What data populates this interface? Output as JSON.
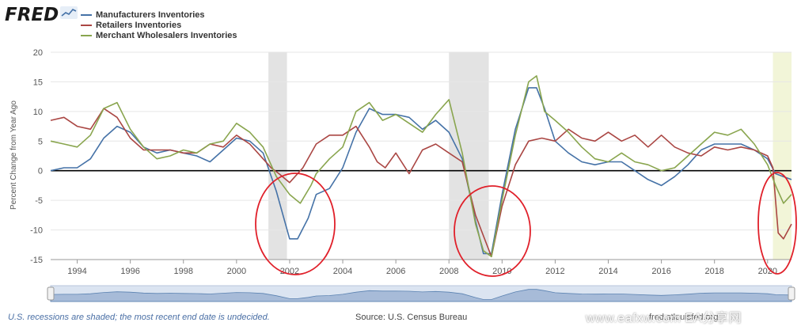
{
  "header": {
    "logo_text": "FRED",
    "legend": [
      {
        "label": "Manufacturers Inventories",
        "color": "#4572a7"
      },
      {
        "label": "Retailers Inventories",
        "color": "#aa4643"
      },
      {
        "label": "Merchant Wholesalers Inventories",
        "color": "#89a54e"
      }
    ]
  },
  "chart_data": {
    "type": "line",
    "title": "",
    "xlabel": "",
    "ylabel": "Percent Change from Year Ago",
    "xlim": [
      1993.0,
      2020.9
    ],
    "ylim": [
      -15,
      20
    ],
    "y_ticks": [
      20,
      15,
      10,
      5,
      0,
      -5,
      -10,
      -15
    ],
    "x_ticks": [
      "1994",
      "1996",
      "1998",
      "2000",
      "2002",
      "2004",
      "2006",
      "2008",
      "2010",
      "2012",
      "2014",
      "2016",
      "2018",
      "2020"
    ],
    "grid": true,
    "legend_position": "top-left",
    "recessions": [
      {
        "start": 2001.2,
        "end": 2001.9
      },
      {
        "start": 2008.0,
        "end": 2009.5
      },
      {
        "start": 2020.2,
        "end": 2020.9,
        "undecided": true
      }
    ],
    "series": [
      {
        "name": "Manufacturers Inventories",
        "color": "#4572a7",
        "x": [
          1993.0,
          1993.5,
          1994.0,
          1994.5,
          1995.0,
          1995.5,
          1996.0,
          1996.5,
          1997.0,
          1997.5,
          1998.0,
          1998.5,
          1999.0,
          1999.5,
          2000.0,
          2000.5,
          2001.0,
          2001.5,
          2002.0,
          2002.3,
          2002.7,
          2003.0,
          2003.5,
          2004.0,
          2004.5,
          2005.0,
          2005.5,
          2006.0,
          2006.5,
          2007.0,
          2007.5,
          2008.0,
          2008.5,
          2009.0,
          2009.3,
          2009.6,
          2010.0,
          2010.5,
          2011.0,
          2011.3,
          2011.6,
          2012.0,
          2012.5,
          2013.0,
          2013.5,
          2014.0,
          2014.5,
          2015.0,
          2015.5,
          2016.0,
          2016.5,
          2017.0,
          2017.5,
          2018.0,
          2018.5,
          2019.0,
          2019.5,
          2020.0,
          2020.3,
          2020.6,
          2020.9
        ],
        "y": [
          0.0,
          0.5,
          0.5,
          2.0,
          5.5,
          7.5,
          6.5,
          4.0,
          3.0,
          3.5,
          3.0,
          2.5,
          1.5,
          3.5,
          5.5,
          5.0,
          3.0,
          -3.5,
          -11.5,
          -11.5,
          -8.0,
          -4.0,
          -3.0,
          0.5,
          6.5,
          10.5,
          9.5,
          9.5,
          9.0,
          7.0,
          8.5,
          6.5,
          2.0,
          -8.5,
          -14.0,
          -14.0,
          -4.0,
          7.0,
          14.0,
          14.0,
          10.5,
          5.0,
          3.0,
          1.5,
          1.0,
          1.5,
          1.5,
          0.0,
          -1.5,
          -2.5,
          -1.0,
          1.0,
          3.5,
          4.5,
          4.5,
          4.5,
          3.5,
          2.0,
          -0.5,
          -1.0,
          -1.5
        ]
      },
      {
        "name": "Retailers Inventories",
        "color": "#aa4643",
        "x": [
          1993.0,
          1993.5,
          1994.0,
          1994.5,
          1995.0,
          1995.5,
          1996.0,
          1996.5,
          1997.0,
          1997.5,
          1998.0,
          1998.5,
          1999.0,
          1999.5,
          2000.0,
          2000.5,
          2001.0,
          2001.3,
          2001.6,
          2002.0,
          2002.5,
          2003.0,
          2003.5,
          2004.0,
          2004.5,
          2005.0,
          2005.3,
          2005.6,
          2006.0,
          2006.5,
          2007.0,
          2007.5,
          2008.0,
          2008.5,
          2009.0,
          2009.3,
          2009.6,
          2010.0,
          2010.5,
          2011.0,
          2011.5,
          2012.0,
          2012.5,
          2013.0,
          2013.5,
          2014.0,
          2014.5,
          2015.0,
          2015.5,
          2016.0,
          2016.5,
          2017.0,
          2017.5,
          2018.0,
          2018.5,
          2019.0,
          2019.5,
          2020.0,
          2020.2,
          2020.4,
          2020.6,
          2020.9
        ],
        "y": [
          8.5,
          9.0,
          7.5,
          7.0,
          10.5,
          9.0,
          5.5,
          3.5,
          3.5,
          3.5,
          3.0,
          3.0,
          4.5,
          4.0,
          6.0,
          4.5,
          2.0,
          0.5,
          -0.5,
          -2.0,
          0.5,
          4.5,
          6.0,
          6.0,
          7.5,
          4.0,
          1.5,
          0.5,
          3.0,
          -0.5,
          3.5,
          4.5,
          3.0,
          1.5,
          -7.5,
          -11.0,
          -14.5,
          -6.0,
          1.0,
          5.0,
          5.5,
          5.0,
          7.0,
          5.5,
          5.0,
          6.5,
          5.0,
          6.0,
          4.0,
          6.0,
          4.0,
          3.0,
          2.5,
          4.0,
          3.5,
          4.0,
          3.5,
          2.5,
          0.5,
          -10.5,
          -11.5,
          -9.0
        ]
      },
      {
        "name": "Merchant Wholesalers Inventories",
        "color": "#89a54e",
        "x": [
          1993.0,
          1993.5,
          1994.0,
          1994.5,
          1995.0,
          1995.5,
          1996.0,
          1996.5,
          1997.0,
          1997.5,
          1998.0,
          1998.5,
          1999.0,
          1999.5,
          2000.0,
          2000.5,
          2001.0,
          2001.5,
          2002.0,
          2002.4,
          2002.8,
          2003.0,
          2003.5,
          2004.0,
          2004.5,
          2005.0,
          2005.5,
          2006.0,
          2006.5,
          2007.0,
          2007.5,
          2008.0,
          2008.5,
          2009.0,
          2009.3,
          2009.6,
          2010.0,
          2010.5,
          2011.0,
          2011.3,
          2011.6,
          2012.0,
          2012.5,
          2013.0,
          2013.5,
          2014.0,
          2014.5,
          2015.0,
          2015.5,
          2016.0,
          2016.5,
          2017.0,
          2017.5,
          2018.0,
          2018.5,
          2019.0,
          2019.5,
          2020.0,
          2020.3,
          2020.6,
          2020.9
        ],
        "y": [
          5.0,
          4.5,
          4.0,
          6.0,
          10.5,
          11.5,
          7.0,
          4.0,
          2.0,
          2.5,
          3.5,
          3.0,
          4.5,
          5.0,
          8.0,
          6.5,
          4.0,
          -1.0,
          -4.0,
          -5.5,
          -2.5,
          -0.5,
          2.0,
          4.0,
          10.0,
          11.5,
          8.5,
          9.5,
          8.0,
          6.5,
          9.5,
          12.0,
          3.0,
          -9.0,
          -13.5,
          -14.5,
          -5.0,
          6.0,
          15.0,
          16.0,
          10.0,
          8.5,
          6.5,
          4.0,
          2.0,
          1.5,
          3.0,
          1.5,
          1.0,
          0.0,
          0.5,
          2.5,
          4.5,
          6.5,
          6.0,
          7.0,
          4.5,
          1.0,
          -2.5,
          -5.5,
          -4.0
        ]
      }
    ]
  },
  "navigator": {
    "series_color": "#4572a7"
  },
  "footer": {
    "note": "U.S. recessions are shaded; the most recent end date is undecided.",
    "source": "Source: U.S. Census Bureau",
    "brand": "fred.stlouisfed.org",
    "watermark": "www.eafxw.com EA分享网"
  }
}
